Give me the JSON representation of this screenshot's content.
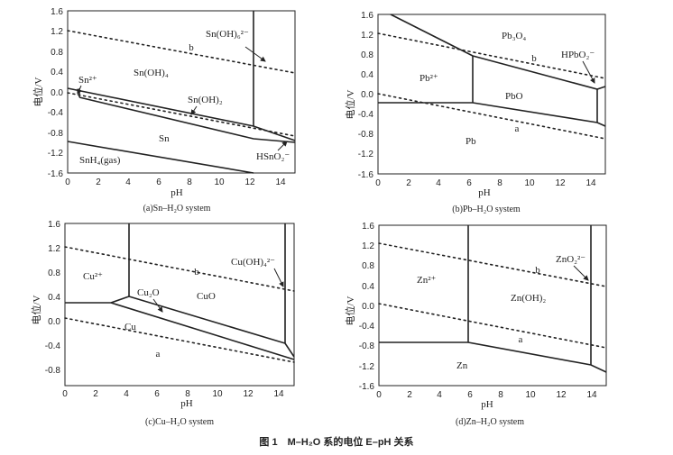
{
  "figure_caption": "图 1　M–H₂O 系的电位 E–pH 关系",
  "common": {
    "y_axis_label": "电位/V",
    "x_axis_label": "pH",
    "x_ticks": [
      "0",
      "2",
      "4",
      "6",
      "8",
      "10",
      "12",
      "14"
    ],
    "line_a": "a",
    "line_b": "b"
  },
  "panels": [
    {
      "id": "sn",
      "caption": "(a)Sn–H₂O system",
      "y_ticks": [
        "1.6",
        "1.2",
        "0.8",
        "0.4",
        "0.0",
        "-0.4",
        "-0.8",
        "-1.2",
        "-1.6"
      ],
      "regions": [
        "Sn(OH)₆²⁻",
        "Sn²⁺",
        "Sn(OH)₄",
        "Sn(OH)₂",
        "Sn",
        "HSnO₂⁻",
        "SnH₄(gas)"
      ]
    },
    {
      "id": "pb",
      "caption": "(b)Pb–H₂O system",
      "y_ticks": [
        "1.6",
        "1.2",
        "0.8",
        "0.4",
        "0.0",
        "-0.4",
        "-0.8",
        "-1.2",
        "-1.6"
      ],
      "regions": [
        "Pb₃O₄",
        "HPbO₂⁻",
        "Pb²⁺",
        "PbO",
        "Pb"
      ]
    },
    {
      "id": "cu",
      "caption": "(c)Cu–H₂O system",
      "y_ticks": [
        "1.6",
        "1.2",
        "0.8",
        "0.4",
        "0.0",
        "-0.4",
        "-0.8"
      ],
      "regions": [
        "Cu(OH)₄²⁻",
        "Cu²⁺",
        "Cu₂O",
        "CuO",
        "Cu"
      ]
    },
    {
      "id": "zn",
      "caption": "(d)Zn–H₂O system",
      "y_ticks": [
        "1.6",
        "1.2",
        "0.8",
        "0.4",
        "0.0",
        "-0.4",
        "-0.8",
        "-1.2",
        "-1.6"
      ],
      "regions": [
        "ZnO₂²⁻",
        "Zn²⁺",
        "Zn(OH)₂",
        "Zn"
      ]
    }
  ]
}
